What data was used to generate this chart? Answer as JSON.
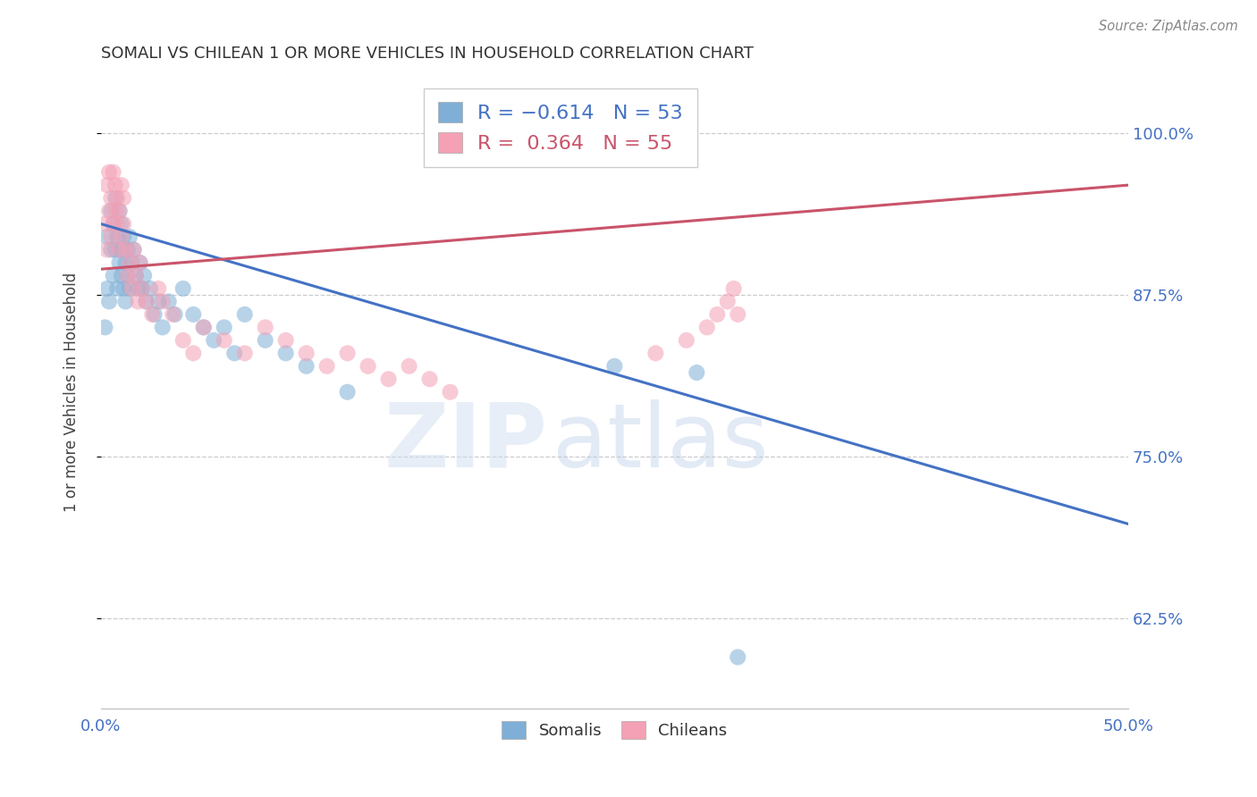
{
  "title": "SOMALI VS CHILEAN 1 OR MORE VEHICLES IN HOUSEHOLD CORRELATION CHART",
  "source": "Source: ZipAtlas.com",
  "ylabel": "1 or more Vehicles in Household",
  "ytick_labels": [
    "100.0%",
    "87.5%",
    "75.0%",
    "62.5%"
  ],
  "ytick_values": [
    1.0,
    0.875,
    0.75,
    0.625
  ],
  "xlim": [
    0.0,
    0.5
  ],
  "ylim": [
    0.555,
    1.045
  ],
  "somali_R": -0.614,
  "somali_N": 53,
  "chilean_R": 0.364,
  "chilean_N": 55,
  "somali_color": "#7fafd6",
  "chilean_color": "#f4a0b5",
  "somali_line_color": "#4472c4",
  "chilean_line_color": "#c9546a",
  "watermark_zip": "ZIP",
  "watermark_atlas": "atlas",
  "somali_x": [
    0.002,
    0.003,
    0.003,
    0.004,
    0.005,
    0.005,
    0.006,
    0.006,
    0.007,
    0.007,
    0.008,
    0.008,
    0.009,
    0.009,
    0.01,
    0.01,
    0.01,
    0.011,
    0.011,
    0.012,
    0.012,
    0.013,
    0.013,
    0.014,
    0.014,
    0.015,
    0.016,
    0.017,
    0.018,
    0.019,
    0.02,
    0.021,
    0.022,
    0.024,
    0.026,
    0.028,
    0.03,
    0.033,
    0.036,
    0.04,
    0.045,
    0.05,
    0.055,
    0.06,
    0.065,
    0.07,
    0.08,
    0.09,
    0.1,
    0.12,
    0.25,
    0.29,
    0.31
  ],
  "somali_y": [
    0.85,
    0.88,
    0.92,
    0.87,
    0.91,
    0.94,
    0.89,
    0.93,
    0.91,
    0.95,
    0.88,
    0.92,
    0.9,
    0.94,
    0.89,
    0.91,
    0.93,
    0.88,
    0.92,
    0.9,
    0.87,
    0.91,
    0.89,
    0.88,
    0.92,
    0.9,
    0.91,
    0.89,
    0.88,
    0.9,
    0.88,
    0.89,
    0.87,
    0.88,
    0.86,
    0.87,
    0.85,
    0.87,
    0.86,
    0.88,
    0.86,
    0.85,
    0.84,
    0.85,
    0.83,
    0.86,
    0.84,
    0.83,
    0.82,
    0.8,
    0.82,
    0.815,
    0.595
  ],
  "chilean_x": [
    0.002,
    0.003,
    0.003,
    0.004,
    0.004,
    0.005,
    0.005,
    0.006,
    0.006,
    0.007,
    0.007,
    0.008,
    0.008,
    0.009,
    0.009,
    0.01,
    0.01,
    0.011,
    0.011,
    0.012,
    0.013,
    0.014,
    0.015,
    0.016,
    0.017,
    0.018,
    0.019,
    0.02,
    0.022,
    0.025,
    0.028,
    0.03,
    0.035,
    0.04,
    0.045,
    0.05,
    0.06,
    0.07,
    0.08,
    0.09,
    0.1,
    0.11,
    0.12,
    0.13,
    0.14,
    0.15,
    0.16,
    0.17,
    0.27,
    0.285,
    0.295,
    0.3,
    0.305,
    0.308,
    0.31
  ],
  "chilean_y": [
    0.93,
    0.91,
    0.96,
    0.94,
    0.97,
    0.92,
    0.95,
    0.93,
    0.97,
    0.94,
    0.96,
    0.93,
    0.95,
    0.91,
    0.94,
    0.92,
    0.96,
    0.93,
    0.95,
    0.91,
    0.89,
    0.9,
    0.88,
    0.91,
    0.89,
    0.87,
    0.9,
    0.88,
    0.87,
    0.86,
    0.88,
    0.87,
    0.86,
    0.84,
    0.83,
    0.85,
    0.84,
    0.83,
    0.85,
    0.84,
    0.83,
    0.82,
    0.83,
    0.82,
    0.81,
    0.82,
    0.81,
    0.8,
    0.83,
    0.84,
    0.85,
    0.86,
    0.87,
    0.88,
    0.86
  ],
  "somali_line_x": [
    0.0,
    0.5
  ],
  "somali_line_y": [
    0.93,
    0.698
  ],
  "chilean_line_x": [
    0.0,
    0.5
  ],
  "chilean_line_y": [
    0.895,
    0.96
  ]
}
